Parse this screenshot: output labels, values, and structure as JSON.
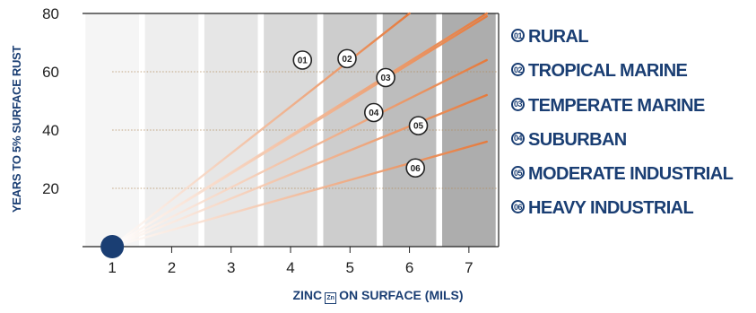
{
  "chart_data": {
    "type": "line",
    "xlabel_before": "ZINC",
    "xlabel_icon": "Zn",
    "xlabel_after": "ON SURFACE (MILS)",
    "ylabel": "YEARS TO 5% SURFACE RUST",
    "xlim": [
      0.5,
      7.5
    ],
    "ylim": [
      0,
      80
    ],
    "x_ticks": [
      "1",
      "2",
      "3",
      "4",
      "5",
      "6",
      "7"
    ],
    "y_ticks": [
      20,
      40,
      60,
      80
    ],
    "grid": "dotted horizontal lines at 20, 40, 60",
    "origin_point": [
      1,
      0
    ],
    "series": [
      {
        "id": "01",
        "name": "RURAL",
        "x": [
          1,
          6
        ],
        "y": [
          0,
          80
        ],
        "label_at": [
          4.2,
          64
        ]
      },
      {
        "id": "02",
        "name": "TROPICAL MARINE",
        "x": [
          1,
          7.3
        ],
        "y": [
          0,
          80
        ],
        "label_at": [
          4.95,
          64.5
        ]
      },
      {
        "id": "03",
        "name": "TEMPERATE MARINE",
        "x": [
          1,
          7.3
        ],
        "y": [
          0,
          79
        ],
        "label_at": [
          5.6,
          58
        ]
      },
      {
        "id": "04",
        "name": "SUBURBAN",
        "x": [
          1,
          7.3
        ],
        "y": [
          0,
          64
        ],
        "label_at": [
          5.4,
          46
        ]
      },
      {
        "id": "05",
        "name": "MODERATE INDUSTRIAL",
        "x": [
          1,
          7.3
        ],
        "y": [
          0,
          52
        ],
        "label_at": [
          6.15,
          41.5
        ]
      },
      {
        "id": "06",
        "name": "HEAVY INDUSTRIAL",
        "x": [
          1,
          7.3
        ],
        "y": [
          0,
          36
        ],
        "label_at": [
          6.1,
          27
        ]
      }
    ],
    "colors": {
      "line": "#e67a3c",
      "title": "#1a3e73",
      "origin": "#1a3e73",
      "bands": [
        "#f5f5f5",
        "#eeeeee",
        "#e6e6e6",
        "#dadada",
        "#cdcdcd",
        "#bdbdbd",
        "#adadad"
      ]
    }
  }
}
